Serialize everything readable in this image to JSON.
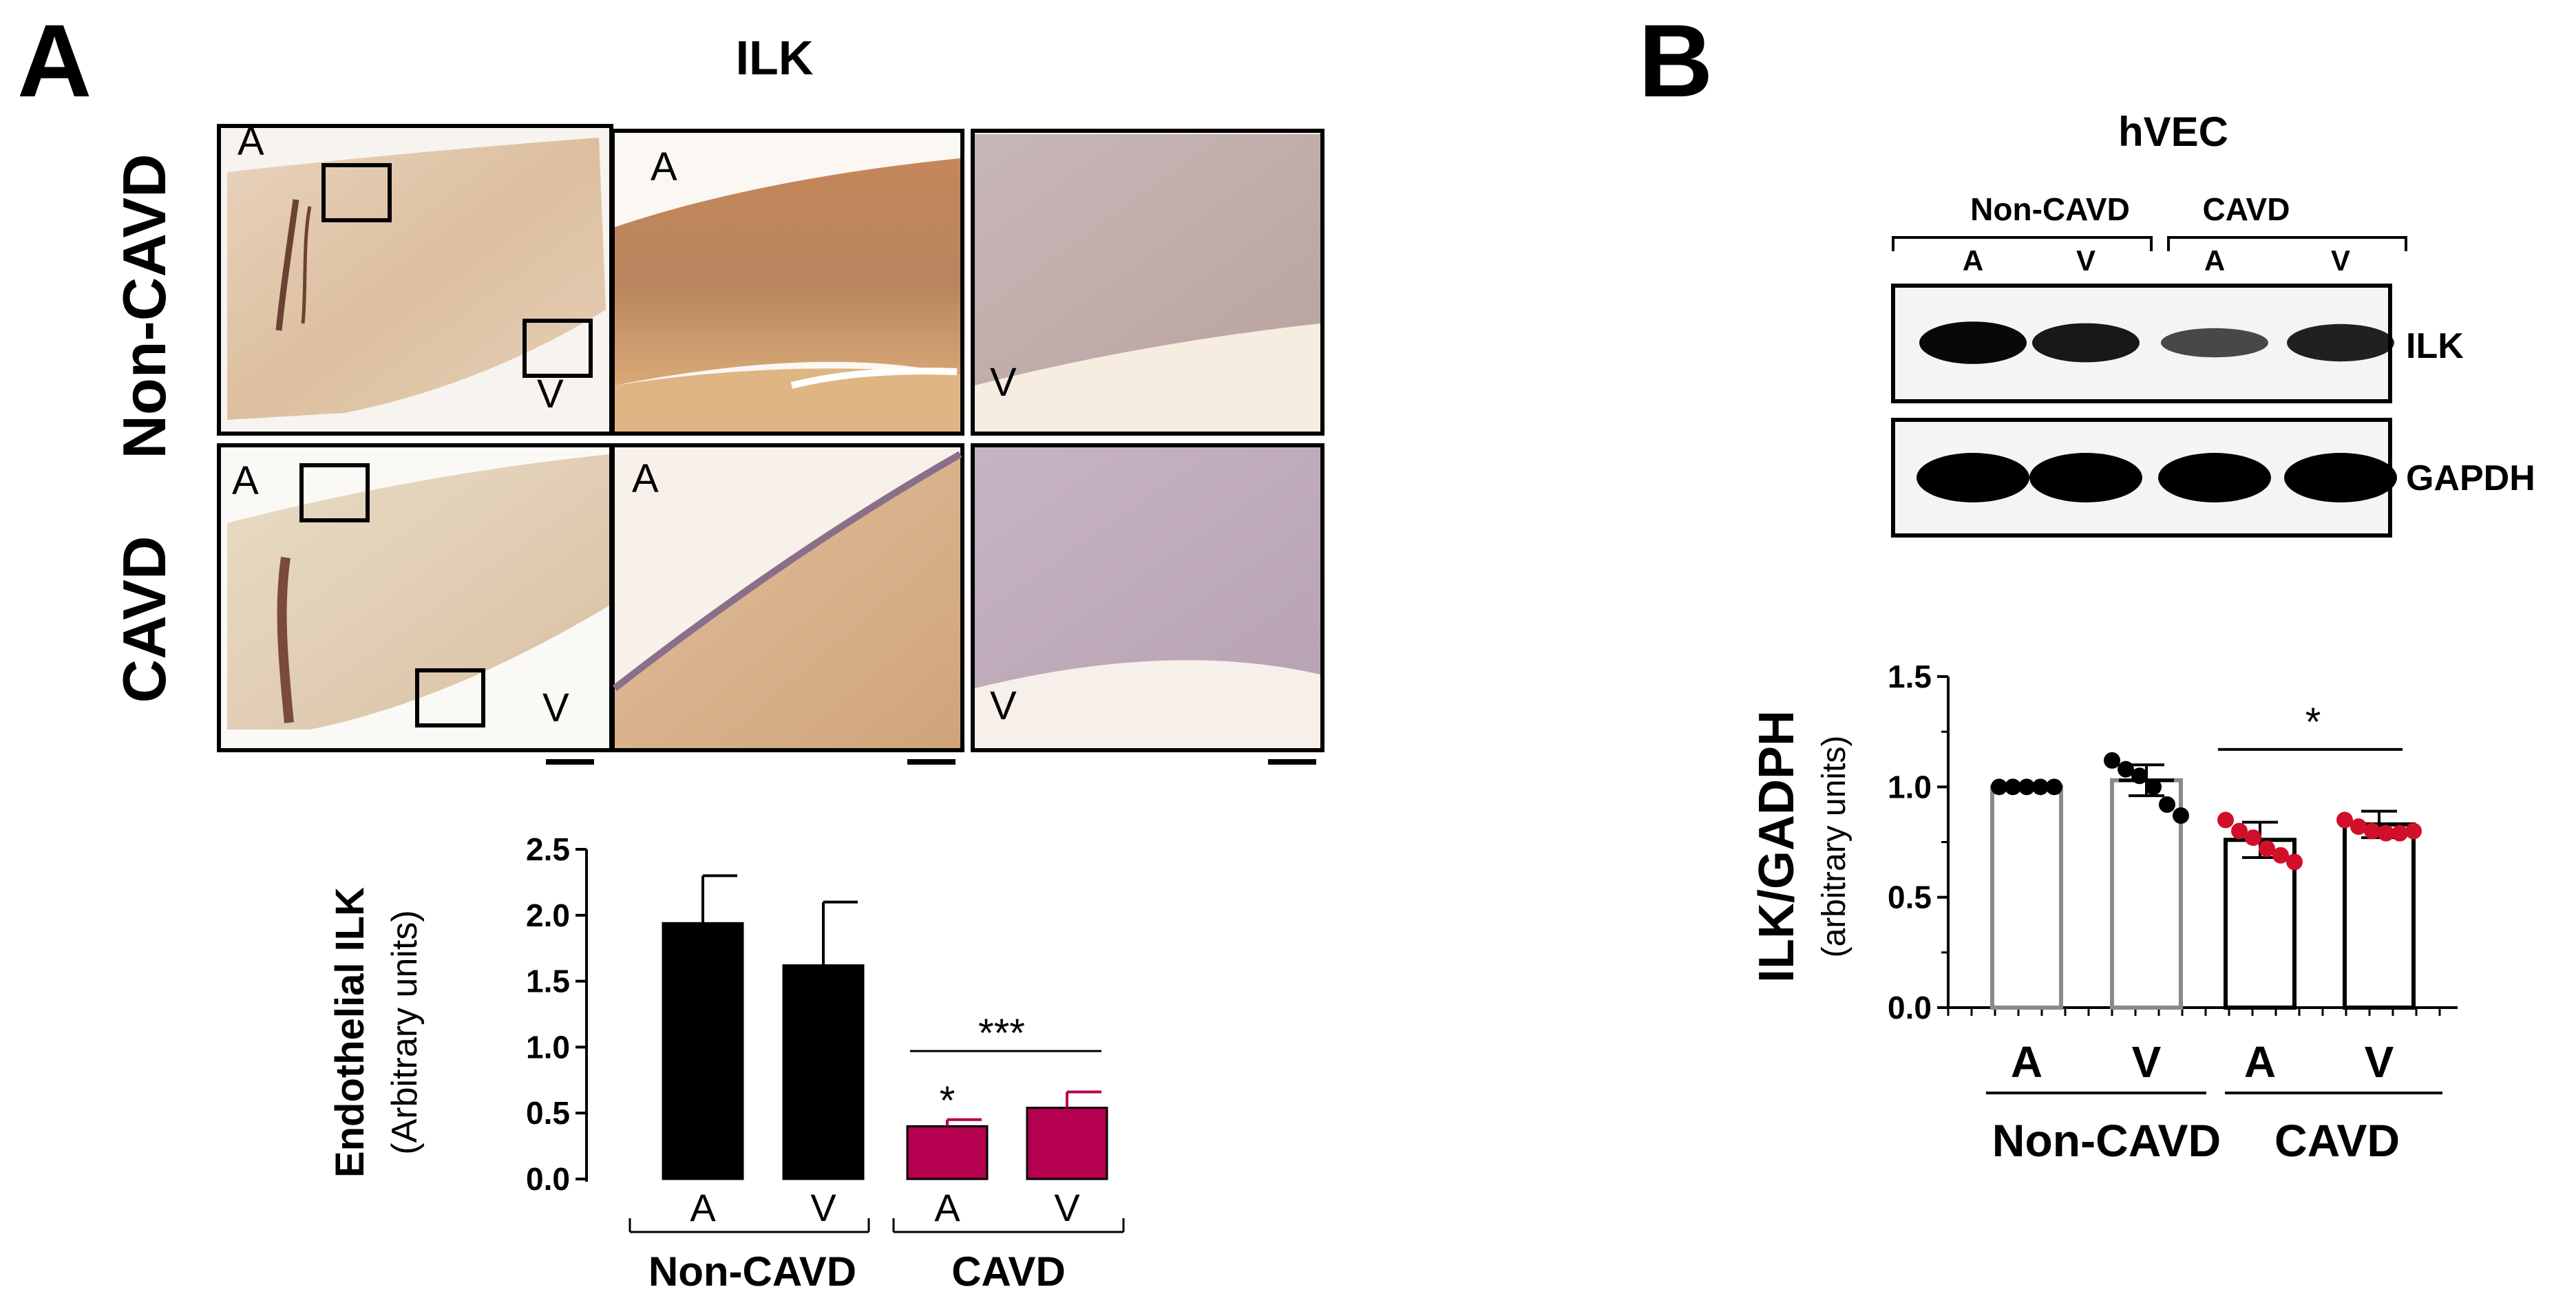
{
  "panel_a": {
    "letter": "A",
    "title": "ILK",
    "row_labels": [
      "Non-CAVD",
      "CAVD"
    ],
    "micrograph_labels": {
      "overview_top_a": "A",
      "overview_bottom_v": "V",
      "zoom_a": "A",
      "zoom_v": "V"
    }
  },
  "panel_b": {
    "letter": "B",
    "title": "hVEC",
    "blot": {
      "group_labels": [
        "Non-CAVD",
        "CAVD"
      ],
      "lane_labels": [
        "A",
        "V",
        "A",
        "V"
      ],
      "band_labels": [
        "ILK",
        "GAPDH"
      ],
      "ilk_band_intensity": [
        0.95,
        0.85,
        0.55,
        0.8
      ],
      "gapdh_band_intensity": [
        1.0,
        1.0,
        1.0,
        1.0
      ]
    }
  },
  "chart_data": [
    {
      "type": "bar",
      "panel": "A",
      "ylabel": "Endothelial ILK",
      "ylabel_sub": "(Arbitrary units)",
      "yticks": [
        "0.0",
        "0.5",
        "1.0",
        "1.5",
        "2.0",
        "2.5"
      ],
      "ylim": [
        0,
        2.5
      ],
      "categories": [
        "A",
        "V",
        "A",
        "V"
      ],
      "groups": [
        {
          "label": "Non-CAVD",
          "members": [
            0,
            1
          ]
        },
        {
          "label": "CAVD",
          "members": [
            2,
            3
          ]
        }
      ],
      "values": [
        1.94,
        1.62,
        0.4,
        0.54
      ],
      "errors": [
        0.36,
        0.48,
        0.05,
        0.12
      ],
      "colors": [
        "#000000",
        "#000000",
        "#b5004f",
        "#b5004f"
      ],
      "annotations": [
        {
          "text": "*",
          "bar": 2
        },
        {
          "text": "***",
          "from": 2,
          "to": 3,
          "y": 0.97
        }
      ]
    },
    {
      "type": "bar",
      "panel": "B",
      "ylabel": "ILK/GADPH",
      "ylabel_sub": "(arbitrary units)",
      "yticks": [
        "0.0",
        "0.5",
        "1.0",
        "1.5"
      ],
      "ylim": [
        0,
        1.5
      ],
      "categories": [
        "A",
        "V",
        "A",
        "V"
      ],
      "groups": [
        {
          "label": "Non-CAVD",
          "members": [
            0,
            1
          ]
        },
        {
          "label": "CAVD",
          "members": [
            2,
            3
          ]
        }
      ],
      "values": [
        1.0,
        1.03,
        0.76,
        0.83
      ],
      "errors": [
        0.0,
        0.07,
        0.08,
        0.06
      ],
      "points": [
        [
          1.0,
          1.0,
          1.0,
          1.0,
          1.0
        ],
        [
          1.12,
          1.08,
          1.05,
          1.0,
          0.92,
          0.87
        ],
        [
          0.85,
          0.8,
          0.77,
          0.72,
          0.69,
          0.66
        ],
        [
          0.85,
          0.82,
          0.8,
          0.79,
          0.79,
          0.8
        ]
      ],
      "point_colors": [
        "#000000",
        "#000000",
        "#d10f29",
        "#d10f29"
      ],
      "bar_edge_colors": [
        "#8a8a8a",
        "#8a8a8a",
        "#000000",
        "#000000"
      ],
      "annotations": [
        {
          "text": "*",
          "from": 2,
          "to": 3,
          "y": 1.17
        }
      ]
    }
  ]
}
